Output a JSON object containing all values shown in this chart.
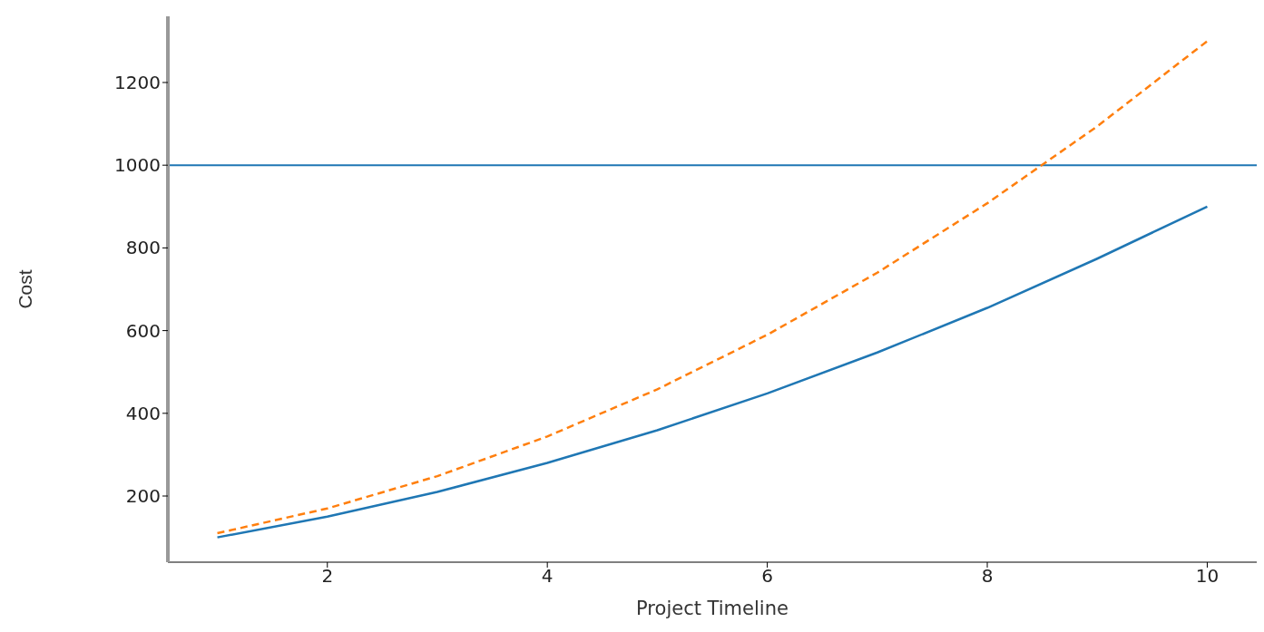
{
  "chart_data": {
    "type": "line",
    "xlabel": "Project Timeline",
    "ylabel": "Cost",
    "x": [
      1,
      2,
      3,
      4,
      5,
      6,
      7,
      8,
      9,
      10
    ],
    "series": [
      {
        "color": "#1f77b4",
        "line_style": "solid",
        "values": [
          100,
          150,
          210,
          280,
          359,
          448,
          547,
          655,
          774,
          900
        ]
      },
      {
        "color": "#ff7f0e",
        "line_style": "dashed",
        "values": [
          110,
          170,
          248,
          344,
          458,
          590,
          740,
          908,
          1094,
          1300
        ]
      }
    ],
    "xlim": [
      0.55,
      10.45
    ],
    "xticks": [
      2,
      4,
      6,
      8,
      10
    ],
    "ylim": [
      40,
      1360
    ],
    "yticks": [
      200,
      400,
      600,
      800,
      1000,
      1200
    ],
    "ref_lines": [
      {
        "axis": "y",
        "value": 1000,
        "color": "#1f77b4"
      }
    ],
    "grid": false,
    "legend": false,
    "marker": "none"
  }
}
